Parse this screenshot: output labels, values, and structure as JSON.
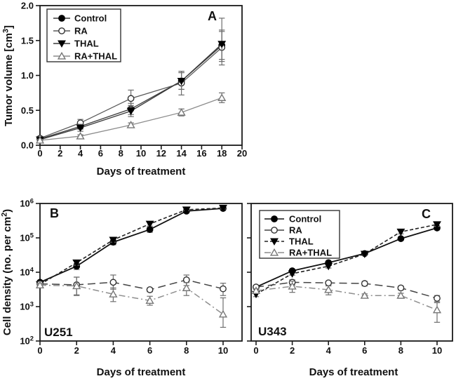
{
  "figure": {
    "background": "#ffffff",
    "axis_color": "#1a1a1a",
    "error_bar_color": "#6e6e6e",
    "text_color": "#111111"
  },
  "chart_data": [
    {
      "id": "A",
      "type": "line",
      "panel_label": "A",
      "xlabel": "Days of treatment",
      "ylabel": "Tumor volume [cm^{3}]",
      "x_axis": {
        "min": 0,
        "max": 20,
        "ticks": [
          {
            "v": 0,
            "label": "0"
          },
          {
            "v": 2,
            "label": "2"
          },
          {
            "v": 4,
            "label": "4"
          },
          {
            "v": 6,
            "label": "6"
          },
          {
            "v": 8,
            "label": "8"
          },
          {
            "v": 10,
            "label": "10"
          },
          {
            "v": 12,
            "label": "12"
          },
          {
            "v": 14,
            "label": "14"
          },
          {
            "v": 16,
            "label": "16"
          },
          {
            "v": 18,
            "label": "18"
          },
          {
            "v": 20,
            "label": "20"
          }
        ]
      },
      "y_axis": {
        "scale": "linear",
        "min": 0,
        "max": 2,
        "ticks": [
          {
            "v": 0,
            "label": "0.0"
          },
          {
            "v": 0.5,
            "label": "0.5"
          },
          {
            "v": 1.0,
            "label": "1.0"
          },
          {
            "v": 1.5,
            "label": "1.5"
          },
          {
            "v": 2.0,
            "label": "2.0"
          }
        ]
      },
      "legend": {
        "position": "upper-left",
        "entries": [
          {
            "label": "Control",
            "marker": "circle-filled",
            "line": "solid",
            "line_color": "#3a3a3a",
            "marker_fill": "#000000",
            "marker_stroke": "#000000"
          },
          {
            "label": "RA",
            "marker": "circle-open",
            "line": "solid",
            "line_color": "#5a5a5a",
            "marker_fill": "#ffffff",
            "marker_stroke": "#333333"
          },
          {
            "label": "THAL",
            "marker": "tri-down-filled",
            "line": "solid",
            "line_color": "#3a3a3a",
            "marker_fill": "#000000",
            "marker_stroke": "#000000"
          },
          {
            "label": "RA+THAL",
            "marker": "tri-up-open",
            "line": "solid",
            "line_color": "#8c8c8c",
            "marker_fill": "#ffffff",
            "marker_stroke": "#777777"
          }
        ]
      },
      "series": [
        {
          "name": "Control",
          "marker": "circle-filled",
          "line_style": "solid",
          "line_width": 1.3,
          "line_color": "#3a3a3a",
          "marker_fill": "#000000",
          "marker_stroke": "#000000",
          "x": [
            0,
            4,
            9,
            14,
            18
          ],
          "y": [
            0.09,
            0.27,
            0.52,
            0.92,
            1.43
          ],
          "err_up": [
            0.02,
            0.04,
            0.08,
            0.12,
            0.2
          ],
          "err_down": [
            0.02,
            0.04,
            0.08,
            0.12,
            0.2
          ]
        },
        {
          "name": "RA",
          "marker": "circle-open",
          "line_style": "solid",
          "line_width": 1.3,
          "line_color": "#5a5a5a",
          "marker_fill": "#ffffff",
          "marker_stroke": "#333333",
          "x": [
            0,
            4,
            9,
            14,
            18
          ],
          "y": [
            0.1,
            0.32,
            0.67,
            0.89,
            1.4
          ],
          "err_up": [
            0.02,
            0.05,
            0.12,
            0.17,
            0.25
          ],
          "err_down": [
            0.02,
            0.05,
            0.12,
            0.17,
            0.25
          ]
        },
        {
          "name": "THAL",
          "marker": "tri-down-filled",
          "line_style": "solid",
          "line_width": 1.3,
          "line_color": "#3a3a3a",
          "marker_fill": "#000000",
          "marker_stroke": "#000000",
          "x": [
            0,
            4,
            9,
            14,
            18
          ],
          "y": [
            0.08,
            0.25,
            0.49,
            0.92,
            1.45
          ],
          "err_up": [
            0.02,
            0.05,
            0.08,
            0.12,
            0.37
          ],
          "err_down": [
            0.02,
            0.05,
            0.08,
            0.12,
            0.25
          ]
        },
        {
          "name": "RA+THAL",
          "marker": "tri-up-open",
          "line_style": "solid",
          "line_width": 1.3,
          "line_color": "#8c8c8c",
          "marker_fill": "#ffffff",
          "marker_stroke": "#777777",
          "x": [
            0,
            4,
            9,
            14,
            18
          ],
          "y": [
            0.07,
            0.13,
            0.29,
            0.47,
            0.68
          ],
          "err_up": [
            0.015,
            0.02,
            0.03,
            0.05,
            0.07
          ],
          "err_down": [
            0.015,
            0.02,
            0.03,
            0.05,
            0.07
          ]
        }
      ]
    },
    {
      "id": "B",
      "type": "line",
      "panel_label": "B",
      "inner_label": "U251",
      "xlabel": "Days of treatment",
      "ylabel": "Cell density (no. per cm^{2})",
      "x_axis": {
        "min": 0,
        "max": 11,
        "ticks": [
          {
            "v": 0,
            "label": "0"
          },
          {
            "v": 2,
            "label": "2"
          },
          {
            "v": 4,
            "label": "4"
          },
          {
            "v": 6,
            "label": "6"
          },
          {
            "v": 8,
            "label": "8"
          },
          {
            "v": 10,
            "label": "10"
          }
        ]
      },
      "y_axis": {
        "scale": "log",
        "min": 100,
        "max": 1000000,
        "ticks": [
          {
            "v": 100,
            "label": "10^{2}"
          },
          {
            "v": 1000,
            "label": "10^{3}"
          },
          {
            "v": 10000,
            "label": "10^{4}"
          },
          {
            "v": 100000,
            "label": "10^{5}"
          },
          {
            "v": 1000000,
            "label": "10^{6}"
          }
        ]
      },
      "series": [
        {
          "name": "Control",
          "marker": "circle-filled",
          "line_style": "solid",
          "line_width": 1.8,
          "line_color": "#111111",
          "marker_fill": "#000000",
          "marker_stroke": "#000000",
          "x": [
            0,
            2,
            4,
            6,
            8,
            10
          ],
          "y": [
            5100,
            15000,
            75000,
            175000,
            600000,
            720000
          ],
          "err_up": [
            700,
            3000,
            12000,
            30000,
            40000,
            50000
          ],
          "err_down": [
            700,
            3000,
            12000,
            30000,
            40000,
            50000
          ]
        },
        {
          "name": "THAL",
          "marker": "tri-down-filled",
          "line_style": "short-dash",
          "line_width": 1.6,
          "line_color": "#222222",
          "marker_fill": "#000000",
          "marker_stroke": "#000000",
          "x": [
            0,
            2,
            4,
            6,
            8,
            10
          ],
          "y": [
            4400,
            19000,
            87000,
            255000,
            660000,
            740000
          ],
          "err_up": [
            600,
            3000,
            12000,
            35000,
            40000,
            50000
          ],
          "err_down": [
            600,
            3000,
            12000,
            35000,
            40000,
            50000
          ]
        },
        {
          "name": "RA",
          "marker": "circle-open",
          "line_style": "long-dash",
          "line_width": 1.5,
          "line_color": "#444444",
          "marker_fill": "#ffffff",
          "marker_stroke": "#333333",
          "x": [
            0,
            2,
            4,
            6,
            8,
            10
          ],
          "y": [
            4600,
            4300,
            5100,
            3100,
            6000,
            3300
          ],
          "err_up": [
            600,
            2900,
            3200,
            400,
            2300,
            1500
          ],
          "err_down": [
            600,
            2200,
            1900,
            400,
            1900,
            1200
          ]
        },
        {
          "name": "RA+THAL",
          "marker": "tri-up-open",
          "line_style": "dash-dot",
          "line_width": 1.5,
          "line_color": "#8f8f8f",
          "marker_fill": "#ffffff",
          "marker_stroke": "#777777",
          "x": [
            0,
            2,
            4,
            6,
            8,
            10
          ],
          "y": [
            4200,
            4000,
            2300,
            1500,
            3500,
            600
          ],
          "err_up": [
            600,
            3200,
            1200,
            500,
            1500,
            1200
          ],
          "err_down": [
            600,
            1800,
            900,
            400,
            1400,
            350
          ]
        }
      ]
    },
    {
      "id": "C",
      "type": "line",
      "panel_label": "C",
      "inner_label": "U343",
      "xlabel": "Days of treatment",
      "ylabel": "",
      "x_axis": {
        "min": 0,
        "max": 11,
        "ticks": [
          {
            "v": 0,
            "label": "0"
          },
          {
            "v": 2,
            "label": "2"
          },
          {
            "v": 4,
            "label": "4"
          },
          {
            "v": 6,
            "label": "6"
          },
          {
            "v": 8,
            "label": "8"
          },
          {
            "v": 10,
            "label": "10"
          }
        ]
      },
      "y_axis": {
        "scale": "log",
        "min": 100,
        "max": 1000000,
        "ticks": [
          {
            "v": 100,
            "label": ""
          },
          {
            "v": 1000,
            "label": ""
          },
          {
            "v": 10000,
            "label": ""
          },
          {
            "v": 100000,
            "label": ""
          },
          {
            "v": 1000000,
            "label": ""
          }
        ]
      },
      "legend": {
        "position": "upper-left",
        "entries": [
          {
            "label": "Control",
            "marker": "circle-filled",
            "line": "solid",
            "line_color": "#111111",
            "marker_fill": "#000000",
            "marker_stroke": "#000000"
          },
          {
            "label": "RA",
            "marker": "circle-open",
            "line": "solid",
            "line_color": "#444444",
            "marker_fill": "#ffffff",
            "marker_stroke": "#333333"
          },
          {
            "label": "THAL",
            "marker": "tri-down-filled",
            "line": "short-dash",
            "line_color": "#222222",
            "marker_fill": "#000000",
            "marker_stroke": "#000000"
          },
          {
            "label": "RA+THAL",
            "marker": "tri-up-open",
            "line": "dash-dot",
            "line_color": "#8f8f8f",
            "marker_fill": "#ffffff",
            "marker_stroke": "#777777"
          }
        ]
      },
      "series": [
        {
          "name": "Control",
          "marker": "circle-filled",
          "line_style": "solid",
          "line_width": 1.8,
          "line_color": "#111111",
          "marker_fill": "#000000",
          "marker_stroke": "#000000",
          "x": [
            0,
            2,
            4,
            6,
            8,
            10
          ],
          "y": [
            3700,
            11000,
            19000,
            35000,
            95000,
            195000
          ],
          "err_up": [
            400,
            900,
            1800,
            2500,
            9000,
            25000
          ],
          "err_down": [
            400,
            900,
            1800,
            2500,
            9000,
            25000
          ]
        },
        {
          "name": "THAL",
          "marker": "tri-down-filled",
          "line_style": "short-dash",
          "line_width": 1.6,
          "line_color": "#222222",
          "marker_fill": "#000000",
          "marker_stroke": "#000000",
          "x": [
            0,
            2,
            4,
            6,
            8,
            10
          ],
          "y": [
            2300,
            9100,
            15000,
            34000,
            150000,
            245000
          ],
          "err_up": [
            350,
            900,
            1800,
            2800,
            20000,
            30000
          ],
          "err_down": [
            350,
            900,
            1800,
            2800,
            20000,
            30000
          ]
        },
        {
          "name": "RA",
          "marker": "circle-open",
          "line_style": "long-dash",
          "line_width": 1.5,
          "line_color": "#444444",
          "marker_fill": "#ffffff",
          "marker_stroke": "#333333",
          "x": [
            0,
            2,
            4,
            6,
            8,
            10
          ],
          "y": [
            3700,
            5100,
            4900,
            4700,
            3500,
            1750
          ],
          "err_up": [
            500,
            900,
            600,
            700,
            450,
            350
          ],
          "err_down": [
            500,
            900,
            600,
            700,
            450,
            350
          ]
        },
        {
          "name": "RA+THAL",
          "marker": "tri-up-open",
          "line_style": "dash-dot",
          "line_width": 1.5,
          "line_color": "#8f8f8f",
          "marker_fill": "#ffffff",
          "marker_stroke": "#777777",
          "x": [
            0,
            2,
            4,
            6,
            8,
            10
          ],
          "y": [
            2900,
            3900,
            3100,
            2100,
            2100,
            800
          ],
          "err_up": [
            400,
            1600,
            900,
            250,
            350,
            500
          ],
          "err_down": [
            400,
            1300,
            900,
            250,
            350,
            450
          ]
        }
      ]
    }
  ]
}
